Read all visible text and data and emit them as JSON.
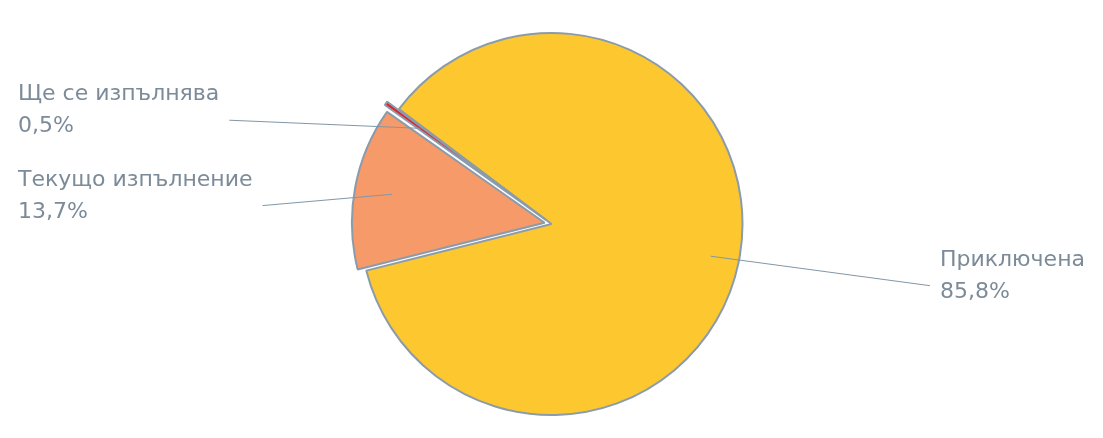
{
  "chart_data": {
    "type": "pie",
    "categories": [
      "Приключена",
      "Текущо изпълнение",
      "Ще се изпълнява"
    ],
    "values": [
      85.8,
      13.7,
      0.5
    ],
    "value_labels": [
      "85,8%",
      "13,7%",
      "0,5%"
    ],
    "colors": [
      "#fdc82f",
      "#f79a6a",
      "#e4222b"
    ]
  }
}
